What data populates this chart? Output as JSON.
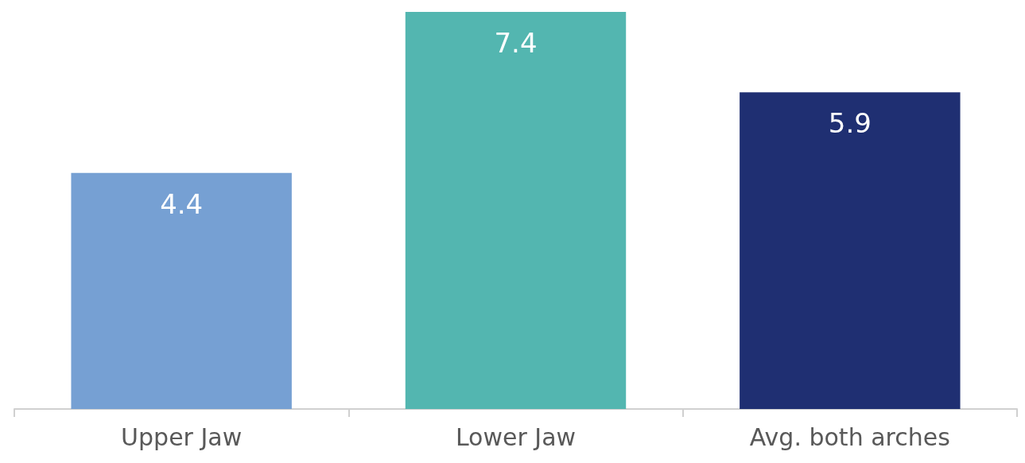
{
  "chart_data": {
    "type": "bar",
    "categories": [
      "Upper Jaw",
      "Lower Jaw",
      "Avg. both arches"
    ],
    "values": [
      4.4,
      7.4,
      5.9
    ],
    "colors": [
      "#76a0d3",
      "#53b6b0",
      "#1f2f72"
    ],
    "data_labels": true
  }
}
